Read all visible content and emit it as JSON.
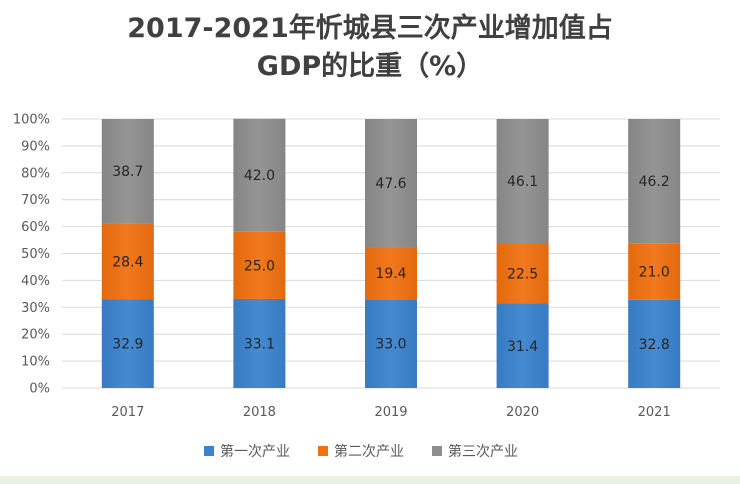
{
  "chart_data": {
    "type": "bar",
    "stacked": true,
    "title_line1": "2017-2021年忻城县三次产业增加值占",
    "title_line2": "GDP的比重（%）",
    "categories": [
      "2017",
      "2018",
      "2019",
      "2020",
      "2021"
    ],
    "series": [
      {
        "name": "第一次产业",
        "values": [
          32.9,
          33.1,
          33.0,
          31.4,
          32.8
        ],
        "color": "#3a83cf"
      },
      {
        "name": "第二次产业",
        "values": [
          28.4,
          25.0,
          19.4,
          22.5,
          21.0
        ],
        "color": "#f2700f"
      },
      {
        "name": "第三次产业",
        "values": [
          38.7,
          42.0,
          47.6,
          46.1,
          46.2
        ],
        "color": "#8e8e8e"
      }
    ],
    "y_ticks": [
      "0%",
      "10%",
      "20%",
      "30%",
      "40%",
      "50%",
      "60%",
      "70%",
      "80%",
      "90%",
      "100%"
    ],
    "ylim": [
      0,
      100
    ],
    "grid": true,
    "legend_position": "bottom"
  }
}
